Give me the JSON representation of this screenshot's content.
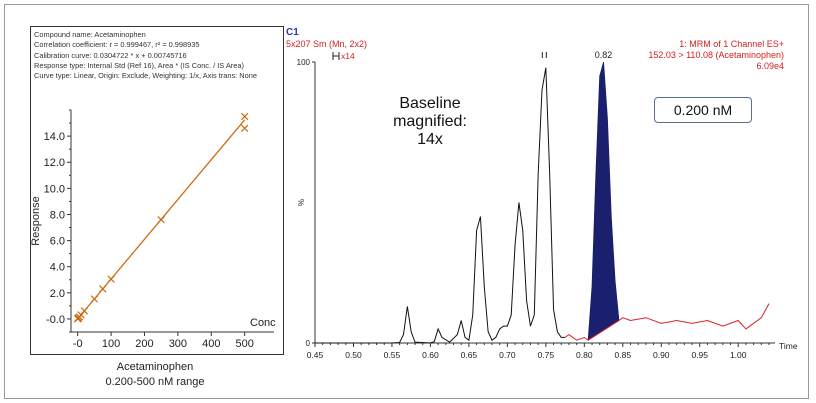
{
  "calibration": {
    "info_lines": [
      "Compound name: Acetaminophen",
      "Correlation coefficient: r = 0.999467, r² = 0.998935",
      "Calibration curve: 0.0304722 * x + 0.00745716",
      "Response type: Internal Std (Ref 16), Area * (IS Conc. / IS Area)",
      "Curve type: Linear, Origin: Exclude, Weighting: 1/x, Axis trans: None"
    ],
    "caption_line1": "Acetaminophen",
    "caption_line2": "0.200-500 nM range"
  },
  "chromatogram": {
    "trace_id": "C1",
    "smoothing": "5x207 Sm (Mn, 2x2)",
    "magnification_marker": "x14",
    "header_right": [
      "1: MRM of 1 Channel ES+",
      "152.03 > 110.08 (Acetaminophen)",
      "6.09e4"
    ],
    "peak_label": "0.82",
    "baseline_note": [
      "Baseline",
      "magnified:",
      "14x"
    ],
    "concentration_label": "0.200 nM"
  },
  "colors": {
    "calibration_line": "#cc6a10",
    "trace": "#111111",
    "trace_tail": "#dd2222",
    "peak_fill": "#1a1f6e",
    "header_red": "#d42020",
    "trace_id_blue": "#2a3aa8"
  },
  "chart_data": [
    {
      "type": "scatter",
      "title": "",
      "xlabel": "Conc",
      "ylabel": "Response",
      "xlim": [
        -20,
        510
      ],
      "ylim": [
        -1,
        16
      ],
      "x_ticks": [
        0,
        100,
        200,
        300,
        400,
        500
      ],
      "x_tick_labels": [
        "-0",
        "100",
        "200",
        "300",
        "400",
        "500"
      ],
      "y_ticks": [
        0,
        2,
        4,
        6,
        8,
        10,
        12,
        14
      ],
      "y_tick_labels": [
        "-0.0",
        "2.0",
        "4.0",
        "6.0",
        "8.0",
        "10.0",
        "12.0",
        "14.0"
      ],
      "fit_line": {
        "slope": 0.0304722,
        "intercept": 0.00745716
      },
      "points": [
        {
          "x": 0.2,
          "y": 0.01
        },
        {
          "x": 0.5,
          "y": 0.02
        },
        {
          "x": 1,
          "y": 0.04
        },
        {
          "x": 2,
          "y": 0.07
        },
        {
          "x": 5,
          "y": 0.16
        },
        {
          "x": 10,
          "y": 0.31
        },
        {
          "x": 20,
          "y": 0.62
        },
        {
          "x": 50,
          "y": 1.53
        },
        {
          "x": 75,
          "y": 2.3
        },
        {
          "x": 100,
          "y": 3.05
        },
        {
          "x": 250,
          "y": 7.6
        },
        {
          "x": 500,
          "y": 14.6
        },
        {
          "x": 500,
          "y": 15.5
        }
      ]
    },
    {
      "type": "line",
      "title": "",
      "xlabel": "Time",
      "ylabel": "%",
      "xlim": [
        0.45,
        1.04
      ],
      "ylim": [
        0,
        100
      ],
      "x_ticks": [
        0.45,
        0.5,
        0.55,
        0.6,
        0.65,
        0.7,
        0.75,
        0.8,
        0.85,
        0.9,
        0.95,
        1.0
      ],
      "x_tick_labels": [
        "0.45",
        "0.50",
        "0.55",
        "0.60",
        "0.65",
        "0.70",
        "0.75",
        "0.80",
        "0.85",
        "0.90",
        "0.95",
        "1.00"
      ],
      "y_ticks": [
        0,
        100
      ],
      "y_tick_labels": [
        "0",
        "100"
      ],
      "grid": false,
      "series": [
        {
          "values": [
            [
              0.45,
              0
            ],
            [
              0.55,
              0
            ],
            [
              0.56,
              0.2
            ],
            [
              0.565,
              3
            ],
            [
              0.57,
              13
            ],
            [
              0.575,
              4
            ],
            [
              0.58,
              0.3
            ],
            [
              0.6,
              0
            ],
            [
              0.605,
              0.5
            ],
            [
              0.61,
              5
            ],
            [
              0.615,
              2
            ],
            [
              0.625,
              0.3
            ],
            [
              0.635,
              3
            ],
            [
              0.64,
              8
            ],
            [
              0.645,
              2
            ],
            [
              0.65,
              1
            ],
            [
              0.655,
              10
            ],
            [
              0.66,
              40
            ],
            [
              0.665,
              45
            ],
            [
              0.67,
              20
            ],
            [
              0.675,
              4
            ],
            [
              0.68,
              1
            ],
            [
              0.685,
              2
            ],
            [
              0.69,
              5
            ],
            [
              0.695,
              6
            ],
            [
              0.7,
              6
            ],
            [
              0.705,
              10
            ],
            [
              0.71,
              35
            ],
            [
              0.715,
              50
            ],
            [
              0.72,
              40
            ],
            [
              0.725,
              15
            ],
            [
              0.73,
              6
            ],
            [
              0.735,
              10
            ],
            [
              0.74,
              60
            ],
            [
              0.745,
              90
            ],
            [
              0.75,
              98
            ],
            [
              0.755,
              60
            ],
            [
              0.76,
              12
            ],
            [
              0.765,
              4
            ],
            [
              0.77,
              2
            ],
            [
              0.775,
              2
            ]
          ]
        },
        {
          "values": [
            [
              0.775,
              2
            ],
            [
              0.78,
              3
            ],
            [
              0.79,
              1
            ],
            [
              0.8,
              2
            ],
            [
              0.805,
              1
            ],
            [
              0.845,
              8
            ],
            [
              0.85,
              9
            ],
            [
              0.86,
              8
            ],
            [
              0.88,
              9
            ],
            [
              0.9,
              7
            ],
            [
              0.92,
              8
            ],
            [
              0.94,
              7
            ],
            [
              0.96,
              8
            ],
            [
              0.98,
              6
            ],
            [
              1.0,
              8
            ],
            [
              1.01,
              5
            ],
            [
              1.02,
              7
            ],
            [
              1.03,
              9
            ],
            [
              1.04,
              14
            ]
          ]
        }
      ],
      "peak": {
        "label": "0.82",
        "profile": [
          [
            0.805,
            1
          ],
          [
            0.81,
            20
          ],
          [
            0.815,
            60
          ],
          [
            0.82,
            95
          ],
          [
            0.825,
            100
          ],
          [
            0.83,
            80
          ],
          [
            0.835,
            45
          ],
          [
            0.84,
            22
          ],
          [
            0.845,
            8
          ]
        ]
      }
    }
  ]
}
